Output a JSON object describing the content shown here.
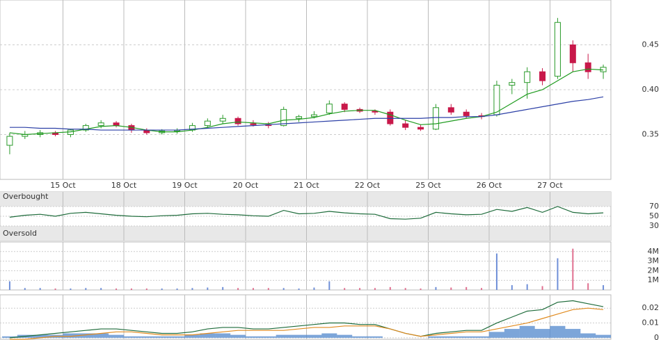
{
  "chart_data": [
    {
      "type": "candlestick",
      "x": [
        0.125,
        0.375,
        0.625,
        0.875,
        1.125,
        1.375,
        1.625,
        1.875,
        2.125,
        2.375,
        2.625,
        2.875,
        3.125,
        3.375,
        3.625,
        3.875,
        4.125,
        4.375,
        4.625,
        4.875,
        5.125,
        5.375,
        5.625,
        5.875,
        6.125,
        6.375,
        6.625,
        6.875,
        7.125,
        7.375,
        7.625,
        7.875,
        8.125,
        8.375,
        8.625,
        8.875,
        9.125,
        9.375,
        9.625,
        9.875
      ],
      "open": [
        0.338,
        0.348,
        0.35,
        0.352,
        0.35,
        0.355,
        0.36,
        0.363,
        0.36,
        0.355,
        0.352,
        0.354,
        0.355,
        0.36,
        0.365,
        0.368,
        0.362,
        0.361,
        0.36,
        0.368,
        0.37,
        0.374,
        0.384,
        0.378,
        0.376,
        0.375,
        0.362,
        0.358,
        0.356,
        0.38,
        0.375,
        0.371,
        0.372,
        0.405,
        0.408,
        0.42,
        0.415,
        0.45,
        0.43,
        0.42
      ],
      "high": [
        0.352,
        0.354,
        0.355,
        0.354,
        0.356,
        0.362,
        0.366,
        0.365,
        0.362,
        0.357,
        0.356,
        0.357,
        0.363,
        0.368,
        0.372,
        0.37,
        0.366,
        0.364,
        0.381,
        0.372,
        0.376,
        0.388,
        0.386,
        0.38,
        0.378,
        0.378,
        0.366,
        0.361,
        0.384,
        0.384,
        0.378,
        0.374,
        0.41,
        0.412,
        0.425,
        0.424,
        0.48,
        0.455,
        0.44,
        0.428
      ],
      "low": [
        0.328,
        0.345,
        0.347,
        0.348,
        0.347,
        0.353,
        0.357,
        0.358,
        0.352,
        0.35,
        0.35,
        0.351,
        0.353,
        0.357,
        0.362,
        0.36,
        0.359,
        0.357,
        0.359,
        0.364,
        0.368,
        0.372,
        0.375,
        0.374,
        0.372,
        0.36,
        0.355,
        0.354,
        0.355,
        0.372,
        0.368,
        0.367,
        0.37,
        0.395,
        0.39,
        0.405,
        0.412,
        0.42,
        0.412,
        0.412
      ],
      "close": [
        0.348,
        0.35,
        0.352,
        0.35,
        0.355,
        0.36,
        0.363,
        0.36,
        0.355,
        0.352,
        0.354,
        0.355,
        0.36,
        0.365,
        0.368,
        0.362,
        0.361,
        0.36,
        0.378,
        0.37,
        0.372,
        0.384,
        0.378,
        0.376,
        0.375,
        0.362,
        0.358,
        0.356,
        0.38,
        0.375,
        0.371,
        0.37,
        0.405,
        0.408,
        0.42,
        0.41,
        0.475,
        0.43,
        0.42,
        0.425
      ],
      "up_color": "#2a9a2a",
      "down_color": "#c8184a",
      "series": [
        {
          "color": "#1e9b1e",
          "values": [
            0.352,
            0.35,
            0.351,
            0.352,
            0.353,
            0.356,
            0.359,
            0.36,
            0.358,
            0.355,
            0.353,
            0.353,
            0.355,
            0.358,
            0.362,
            0.364,
            0.363,
            0.362,
            0.366,
            0.367,
            0.369,
            0.373,
            0.376,
            0.377,
            0.377,
            0.372,
            0.366,
            0.361,
            0.362,
            0.365,
            0.368,
            0.37,
            0.375,
            0.385,
            0.395,
            0.4,
            0.41,
            0.42,
            0.423,
            0.422
          ]
        },
        {
          "color": "#2b3fa6",
          "values": [
            0.358,
            0.358,
            0.357,
            0.357,
            0.356,
            0.356,
            0.355,
            0.355,
            0.355,
            0.355,
            0.355,
            0.355,
            0.356,
            0.357,
            0.358,
            0.359,
            0.36,
            0.361,
            0.362,
            0.363,
            0.364,
            0.365,
            0.366,
            0.367,
            0.368,
            0.368,
            0.368,
            0.368,
            0.369,
            0.369,
            0.37,
            0.37,
            0.372,
            0.375,
            0.378,
            0.381,
            0.384,
            0.387,
            0.389,
            0.392
          ]
        }
      ],
      "xlim": [
        0,
        10
      ],
      "xticks": [
        {
          "value": 1,
          "label": "15 Oct"
        },
        {
          "value": 2,
          "label": "18 Oct"
        },
        {
          "value": 3,
          "label": "19 Oct"
        },
        {
          "value": 4,
          "label": "20 Oct"
        },
        {
          "value": 5,
          "label": "21 Oct"
        },
        {
          "value": 6,
          "label": "22 Oct"
        },
        {
          "value": 7,
          "label": "25 Oct"
        },
        {
          "value": 8,
          "label": "26 Oct"
        },
        {
          "value": 9,
          "label": "27 Oct"
        }
      ],
      "ylim": [
        0.3,
        0.5
      ],
      "yticks": [
        0.35,
        {
          "value": 0.4,
          "label": "0.40"
        },
        0.45
      ]
    },
    {
      "type": "line",
      "annotations": [
        "Overbought",
        "Oversold"
      ],
      "series": [
        {
          "color": "#1d6b3a",
          "values": [
            48,
            52,
            54,
            50,
            56,
            58,
            55,
            52,
            50,
            49,
            51,
            52,
            55,
            56,
            54,
            53,
            51,
            50,
            62,
            55,
            56,
            60,
            57,
            55,
            54,
            45,
            44,
            46,
            58,
            55,
            53,
            54,
            64,
            60,
            68,
            58,
            70,
            58,
            55,
            57
          ]
        }
      ],
      "bands": [
        [
          70,
          100
        ],
        [
          0,
          30
        ]
      ],
      "ylim": [
        0,
        100
      ],
      "yticks": [
        30,
        50,
        70
      ]
    },
    {
      "type": "bar",
      "values": [
        900000,
        200000,
        200000,
        150000,
        150000,
        200000,
        200000,
        150000,
        150000,
        150000,
        150000,
        150000,
        200000,
        250000,
        300000,
        200000,
        200000,
        200000,
        200000,
        150000,
        250000,
        900000,
        200000,
        200000,
        200000,
        300000,
        200000,
        150000,
        300000,
        250000,
        300000,
        200000,
        3800000,
        500000,
        600000,
        400000,
        3300000,
        4300000,
        700000,
        500000
      ],
      "ylim": [
        0,
        5000000
      ],
      "yticks": [
        {
          "value": 1000000,
          "label": "1M"
        },
        {
          "value": 2000000,
          "label": "2M"
        },
        {
          "value": 3000000,
          "label": "3M"
        },
        {
          "value": 4000000,
          "label": "4M"
        }
      ]
    },
    {
      "type": "macd",
      "histogram": {
        "color": "#5b8fd0",
        "values": [
          0.001,
          0.002,
          0.002,
          0.002,
          0.003,
          0.003,
          0.003,
          0.002,
          0.001,
          0.001,
          0.001,
          0.001,
          0.002,
          0.003,
          0.003,
          0.002,
          0.001,
          0.001,
          0.002,
          0.002,
          0.002,
          0.003,
          0.002,
          0.001,
          0.001,
          0,
          0,
          0,
          0.001,
          0.001,
          0.001,
          0.001,
          0.004,
          0.006,
          0.008,
          0.006,
          0.008,
          0.006,
          0.003,
          0.002
        ]
      },
      "series": [
        {
          "color": "#1d6b3a",
          "values": [
            0,
            0.001,
            0.002,
            0.003,
            0.004,
            0.005,
            0.006,
            0.006,
            0.005,
            0.004,
            0.003,
            0.003,
            0.004,
            0.006,
            0.007,
            0.007,
            0.006,
            0.006,
            0.007,
            0.008,
            0.009,
            0.01,
            0.01,
            0.009,
            0.009,
            0.006,
            0.003,
            0.001,
            0.003,
            0.004,
            0.005,
            0.005,
            0.01,
            0.014,
            0.018,
            0.019,
            0.024,
            0.025,
            0.023,
            0.021
          ]
        },
        {
          "color": "#e08a1e",
          "values": [
            -0.001,
            -0.001,
            0,
            0.001,
            0.001,
            0.002,
            0.003,
            0.004,
            0.004,
            0.003,
            0.002,
            0.002,
            0.002,
            0.003,
            0.004,
            0.005,
            0.005,
            0.005,
            0.005,
            0.006,
            0.007,
            0.007,
            0.008,
            0.008,
            0.008,
            0.006,
            0.003,
            0.001,
            0.002,
            0.003,
            0.004,
            0.004,
            0.006,
            0.008,
            0.01,
            0.013,
            0.016,
            0.019,
            0.02,
            0.019
          ]
        }
      ],
      "ylim": [
        -0.001,
        0.029
      ],
      "yticks": [
        0,
        0.01,
        0.02
      ]
    }
  ]
}
